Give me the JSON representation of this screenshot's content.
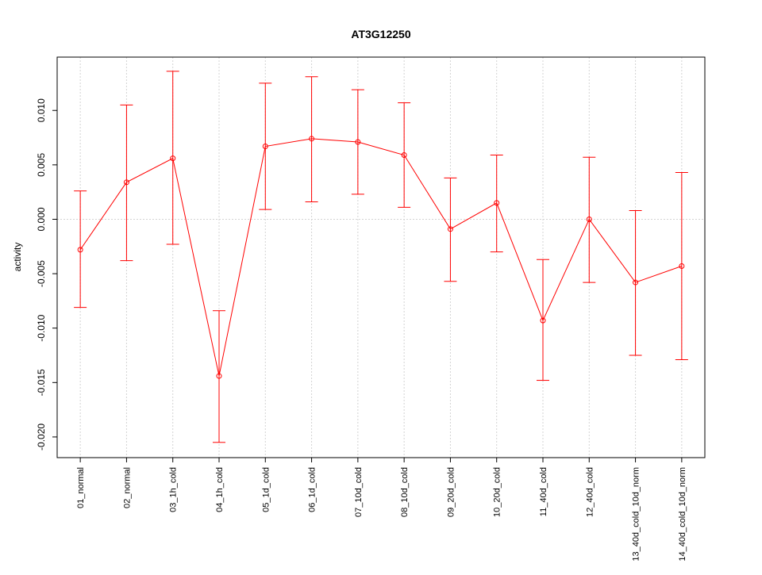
{
  "chart_data": {
    "type": "line",
    "title": "AT3G12250",
    "xlabel": "",
    "ylabel": "activity",
    "ylim": [
      -0.0219,
      0.0149
    ],
    "grid": true,
    "color": "#ff0000",
    "yticks": [
      -0.02,
      -0.015,
      -0.01,
      -0.005,
      0.0,
      0.005,
      0.01
    ],
    "ytick_labels": [
      "-0.020",
      "-0.015",
      "-0.010",
      "-0.005",
      "0.000",
      "0.005",
      "0.010"
    ],
    "categories": [
      "01_normal",
      "02_normal",
      "03_1h_cold",
      "04_1h_cold",
      "05_1d_cold",
      "06_1d_cold",
      "07_10d_cold",
      "08_10d_cold",
      "09_20d_cold",
      "10_20d_cold",
      "11_40d_cold",
      "12_40d_cold",
      "13_40d_cold_10d_norm",
      "14_40d_cold_10d_norm"
    ],
    "values": [
      -0.0028,
      0.0034,
      0.0056,
      -0.0144,
      0.0067,
      0.0074,
      0.0071,
      0.0059,
      -0.0009,
      0.0015,
      -0.0093,
      0.0,
      -0.0058,
      -0.0043
    ],
    "upper": [
      0.0026,
      0.0105,
      0.0136,
      -0.0084,
      0.0125,
      0.0131,
      0.0119,
      0.0107,
      0.0038,
      0.0059,
      -0.0037,
      0.0057,
      0.0008,
      0.0043
    ],
    "lower": [
      -0.0081,
      -0.0038,
      -0.0023,
      -0.0205,
      0.0009,
      0.0016,
      0.0023,
      0.0011,
      -0.0057,
      -0.003,
      -0.0148,
      -0.0058,
      -0.0125,
      -0.0129
    ]
  }
}
